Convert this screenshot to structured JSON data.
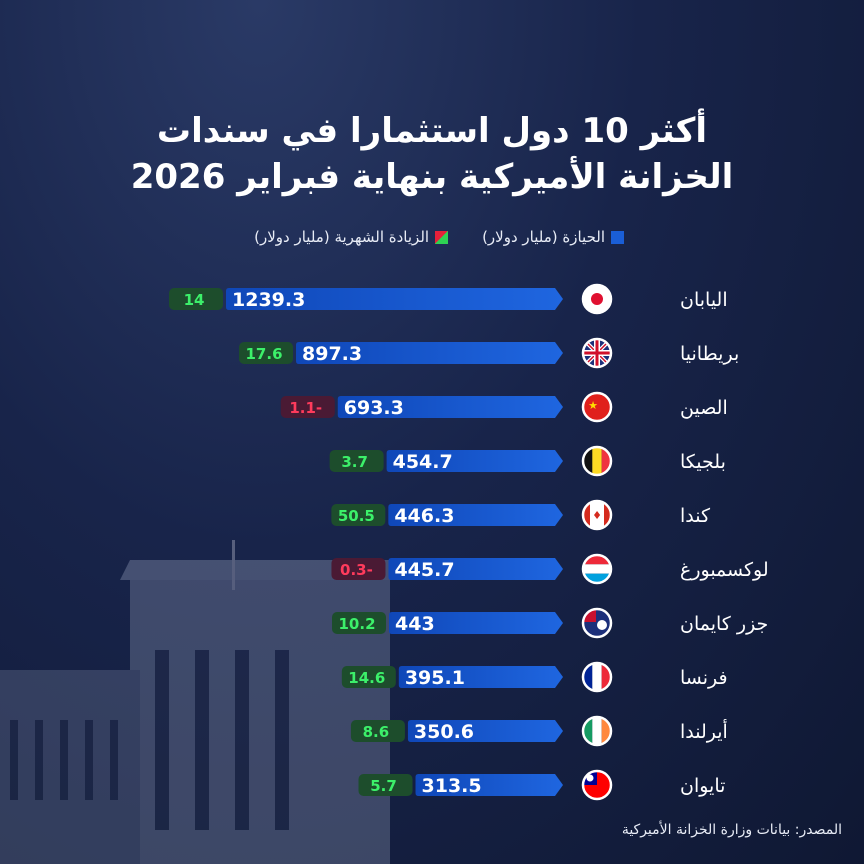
{
  "title_line1": "أكثر 10 دول استثمارا في سندات",
  "title_line2": "الخزانة الأميركية بنهاية فبراير 2026",
  "legend": {
    "holdings": "الحيازة (مليار دولار)",
    "monthly_change": "الزيادة الشهرية (مليار دولار)"
  },
  "source": "المصدر: بيانات وزارة الخزانة الأميركية",
  "colors": {
    "bar": "#1a5ed6",
    "positive": "#3cf06a",
    "negative": "#ff3b5c"
  },
  "chart_data": {
    "type": "bar",
    "orientation": "horizontal",
    "categories": [
      "اليابان",
      "بريطانيا",
      "الصين",
      "بلجيكا",
      "كندا",
      "لوكسمبورغ",
      "جزر كايمان",
      "فرنسا",
      "أيرلندا",
      "تايوان"
    ],
    "flags": [
      "japan",
      "uk",
      "china",
      "belgium",
      "canada",
      "luxembourg",
      "cayman-islands",
      "france",
      "ireland",
      "taiwan"
    ],
    "series": [
      {
        "name": "الحيازة (مليار دولار)",
        "values": [
          1239.3,
          897.3,
          693.3,
          454.7,
          446.3,
          445.7,
          443,
          395.1,
          350.6,
          313.5
        ],
        "labels": [
          "1239.3",
          "897.3",
          "693.3",
          "454.7",
          "446.3",
          "445.7",
          "443",
          "395.1",
          "350.6",
          "313.5"
        ]
      },
      {
        "name": "الزيادة الشهرية (مليار دولار)",
        "values": [
          14,
          17.6,
          -1.1,
          3.7,
          50.5,
          -0.3,
          10.2,
          14.6,
          8.6,
          5.7
        ],
        "labels": [
          "14",
          "17.6",
          "1.1-",
          "3.7",
          "50.5",
          "0.3-",
          "10.2",
          "14.6",
          "8.6",
          "5.7"
        ]
      }
    ]
  }
}
